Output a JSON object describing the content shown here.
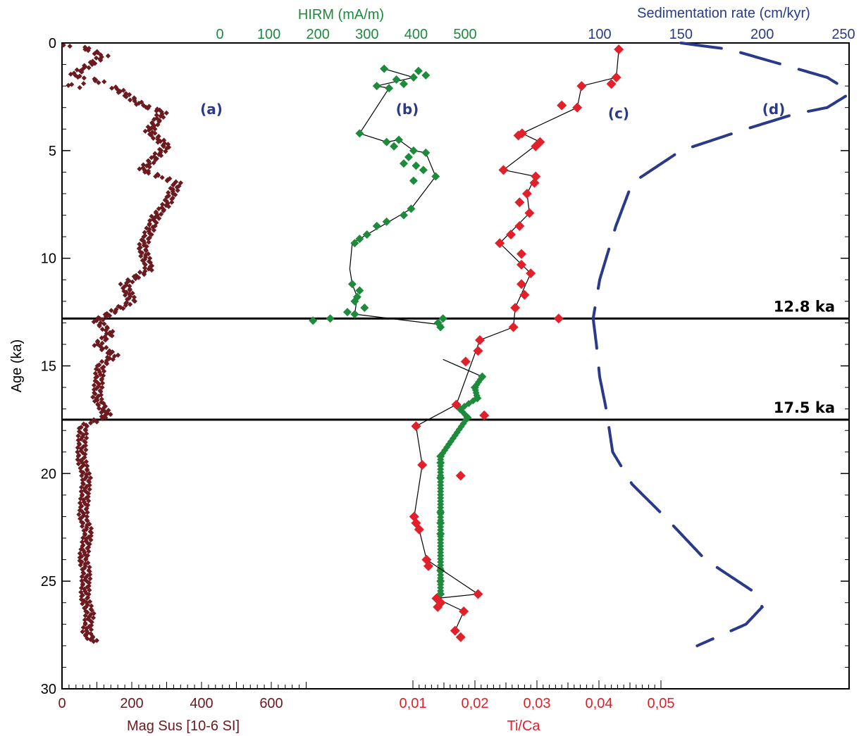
{
  "chart_data": {
    "type": "scatter",
    "y_axis": {
      "label": "Age (ka)",
      "range": [
        0,
        30
      ],
      "ticks": [
        "0",
        "5",
        "10",
        "15",
        "20",
        "25",
        "30"
      ],
      "inverted": true
    },
    "axes": {
      "magsus": {
        "label": "Mag Sus [10-6 SI]",
        "range": [
          0,
          600
        ],
        "ticks": [
          "0",
          "200",
          "400",
          "600"
        ],
        "color": "#6b1a1f"
      },
      "hirm": {
        "label": "HIRM (mA/m)",
        "range": [
          0,
          500
        ],
        "ticks": [
          "0",
          "100",
          "200",
          "300",
          "400",
          "500"
        ],
        "color": "#1e8a3c"
      },
      "tica": {
        "label": "Ti/Ca",
        "range": [
          0.01,
          0.05
        ],
        "ticks": [
          "0,01",
          "0,02",
          "0,03",
          "0,04",
          "0,05"
        ],
        "color": "#e0202a"
      },
      "sedrate": {
        "label": "Sedimentation rate (cm/kyr)",
        "range": [
          100,
          250
        ],
        "ticks": [
          "100",
          "150",
          "200",
          "250"
        ],
        "color": "#2a3a8a"
      }
    },
    "panel_labels": [
      "(a)",
      "(b)",
      "(c)",
      "(d)"
    ],
    "horizontal_lines": [
      {
        "age": 12.8,
        "label": "12.8 ka"
      },
      {
        "age": 17.5,
        "label": "17.5 ka"
      }
    ],
    "magsus_curve": [
      [
        -45,
        0.0
      ],
      [
        60,
        0.2
      ],
      [
        120,
        0.6
      ],
      [
        30,
        1.5
      ],
      [
        120,
        1.8
      ],
      [
        -70,
        2.1
      ],
      [
        150,
        2.05
      ],
      [
        230,
        2.9
      ],
      [
        290,
        3.2
      ],
      [
        250,
        4.1
      ],
      [
        300,
        4.8
      ],
      [
        230,
        5.9
      ],
      [
        330,
        6.5
      ],
      [
        300,
        7.5
      ],
      [
        270,
        8.0
      ],
      [
        230,
        9.5
      ],
      [
        250,
        10.5
      ],
      [
        180,
        11.2
      ],
      [
        200,
        12.0
      ],
      [
        100,
        12.9
      ],
      [
        140,
        13.5
      ],
      [
        100,
        14.0
      ],
      [
        150,
        14.5
      ],
      [
        110,
        15.0
      ],
      [
        100,
        16.5
      ],
      [
        130,
        17.3
      ],
      [
        60,
        17.8
      ],
      [
        55,
        19.3
      ],
      [
        70,
        20.2
      ],
      [
        60,
        22.0
      ],
      [
        75,
        22.7
      ],
      [
        60,
        24.0
      ],
      [
        70,
        24.5
      ],
      [
        65,
        25.8
      ],
      [
        80,
        26.5
      ],
      [
        70,
        27.4
      ],
      [
        90,
        27.8
      ]
    ],
    "hirm_points": [
      [
        455,
        12.8
      ],
      [
        445,
        13.0
      ],
      [
        450,
        13.2
      ],
      [
        535,
        15.5
      ],
      [
        520,
        16.0
      ],
      [
        525,
        16.5
      ],
      [
        490,
        17.0
      ],
      [
        505,
        17.4
      ],
      [
        450,
        19.2
      ],
      [
        450,
        19.5
      ],
      [
        450,
        20.2
      ],
      [
        450,
        21.8
      ],
      [
        450,
        22.3
      ],
      [
        450,
        22.8
      ],
      [
        450,
        24.5
      ],
      [
        450,
        25.0
      ],
      [
        450,
        25.6
      ]
    ],
    "hirm_line": [
      [
        455,
        12.8
      ],
      [
        445,
        13.0
      ],
      [
        450,
        13.2
      ]
    ],
    "hirm_line_b": [
      [
        455,
        14.7
      ],
      [
        535,
        15.5
      ],
      [
        520,
        16.0
      ],
      [
        525,
        16.5
      ],
      [
        490,
        17.0
      ],
      [
        505,
        17.4
      ],
      [
        450,
        19.2
      ],
      [
        450,
        25.6
      ]
    ],
    "hirm_upper_points": [
      [
        335,
        1.2
      ],
      [
        405,
        1.3
      ],
      [
        420,
        1.5
      ],
      [
        395,
        1.6
      ],
      [
        360,
        1.7
      ],
      [
        375,
        1.9
      ],
      [
        320,
        2.0
      ],
      [
        345,
        2.1
      ],
      [
        285,
        4.2
      ],
      [
        340,
        4.6
      ],
      [
        355,
        4.8
      ],
      [
        365,
        4.5
      ],
      [
        395,
        5.0
      ],
      [
        420,
        5.1
      ],
      [
        385,
        5.3
      ],
      [
        375,
        5.6
      ],
      [
        400,
        5.7
      ],
      [
        415,
        5.9
      ],
      [
        440,
        6.2
      ],
      [
        395,
        6.4
      ],
      [
        390,
        7.7
      ],
      [
        375,
        8.0
      ],
      [
        340,
        8.3
      ],
      [
        320,
        8.5
      ],
      [
        300,
        8.9
      ],
      [
        285,
        9.1
      ],
      [
        275,
        9.3
      ],
      [
        270,
        11.2
      ],
      [
        285,
        11.5
      ],
      [
        280,
        11.8
      ],
      [
        275,
        12.0
      ],
      [
        295,
        12.3
      ],
      [
        260,
        12.5
      ],
      [
        275,
        12.6
      ],
      [
        225,
        12.8
      ],
      [
        190,
        12.9
      ]
    ],
    "hirm_upper_line": [
      [
        335,
        1.2
      ],
      [
        395,
        1.6
      ],
      [
        320,
        2.0
      ],
      [
        345,
        2.1
      ],
      [
        285,
        4.2
      ],
      [
        340,
        4.6
      ],
      [
        365,
        4.5
      ],
      [
        395,
        5.0
      ],
      [
        420,
        5.1
      ],
      [
        440,
        6.2
      ],
      [
        390,
        7.7
      ],
      [
        300,
        8.9
      ],
      [
        270,
        9.3
      ],
      [
        265,
        10.5
      ],
      [
        270,
        11.2
      ],
      [
        280,
        11.8
      ],
      [
        275,
        12.6
      ],
      [
        455,
        13.1
      ]
    ],
    "tica_points": [
      [
        0.0432,
        0.3
      ],
      [
        0.0428,
        1.6
      ],
      [
        0.042,
        1.9
      ],
      [
        0.0372,
        2.0
      ],
      [
        0.0365,
        3.0
      ],
      [
        0.034,
        2.9
      ],
      [
        0.0276,
        4.2
      ],
      [
        0.027,
        4.3
      ],
      [
        0.0305,
        4.6
      ],
      [
        0.0298,
        4.8
      ],
      [
        0.0246,
        5.9
      ],
      [
        0.0298,
        6.2
      ],
      [
        0.0296,
        6.5
      ],
      [
        0.0284,
        7.0
      ],
      [
        0.0272,
        7.4
      ],
      [
        0.0288,
        7.9
      ],
      [
        0.0272,
        8.5
      ],
      [
        0.0258,
        8.9
      ],
      [
        0.024,
        9.3
      ],
      [
        0.0275,
        9.8
      ],
      [
        0.0275,
        10.3
      ],
      [
        0.029,
        10.7
      ],
      [
        0.0275,
        11.2
      ],
      [
        0.028,
        11.7
      ],
      [
        0.0265,
        12.3
      ],
      [
        0.0335,
        12.8
      ],
      [
        0.0262,
        13.2
      ],
      [
        0.0208,
        13.8
      ],
      [
        0.0205,
        14.3
      ],
      [
        0.0185,
        14.8
      ],
      [
        0.017,
        16.8
      ],
      [
        0.0215,
        17.3
      ],
      [
        0.0105,
        17.8
      ],
      [
        0.0115,
        19.6
      ],
      [
        0.0177,
        20.1
      ],
      [
        0.0102,
        22.0
      ],
      [
        0.0105,
        22.3
      ],
      [
        0.011,
        22.6
      ],
      [
        0.0122,
        24.0
      ],
      [
        0.0125,
        24.3
      ],
      [
        0.0205,
        25.6
      ],
      [
        0.0138,
        25.8
      ],
      [
        0.0145,
        26.0
      ],
      [
        0.014,
        26.2
      ],
      [
        0.0182,
        26.4
      ],
      [
        0.0168,
        27.3
      ],
      [
        0.0177,
        27.6
      ]
    ],
    "tica_line": [
      [
        0.0432,
        0.3
      ],
      [
        0.0428,
        1.6
      ],
      [
        0.0372,
        2.0
      ],
      [
        0.0365,
        3.0
      ],
      [
        0.0276,
        4.2
      ],
      [
        0.0305,
        4.6
      ],
      [
        0.0246,
        5.9
      ],
      [
        0.0298,
        6.2
      ],
      [
        0.0284,
        7.0
      ],
      [
        0.0288,
        7.9
      ],
      [
        0.024,
        9.3
      ],
      [
        0.029,
        10.7
      ],
      [
        0.0265,
        12.3
      ],
      [
        0.0262,
        13.2
      ],
      [
        0.0208,
        13.8
      ],
      [
        0.017,
        16.8
      ],
      [
        0.0105,
        17.8
      ],
      [
        0.0115,
        19.6
      ],
      [
        0.0102,
        22.0
      ],
      [
        0.011,
        22.6
      ],
      [
        0.0122,
        24.0
      ],
      [
        0.0205,
        25.6
      ],
      [
        0.0138,
        25.8
      ],
      [
        0.0182,
        26.4
      ],
      [
        0.0168,
        27.3
      ]
    ],
    "sedrate_curve": [
      [
        150,
        0.0
      ],
      [
        180,
        0.3
      ],
      [
        240,
        1.6
      ],
      [
        255,
        2.3
      ],
      [
        240,
        3.0
      ],
      [
        220,
        3.3
      ],
      [
        190,
        4.0
      ],
      [
        150,
        5.0
      ],
      [
        120,
        6.5
      ],
      [
        110,
        8.5
      ],
      [
        100,
        11.0
      ],
      [
        96,
        12.8
      ],
      [
        98,
        14.0
      ],
      [
        100,
        15.5
      ],
      [
        104,
        17.0
      ],
      [
        108,
        19.0
      ],
      [
        120,
        20.5
      ],
      [
        140,
        22.0
      ],
      [
        165,
        24.0
      ],
      [
        195,
        25.5
      ],
      [
        200,
        26.2
      ],
      [
        190,
        27.0
      ],
      [
        160,
        28.0
      ]
    ]
  }
}
